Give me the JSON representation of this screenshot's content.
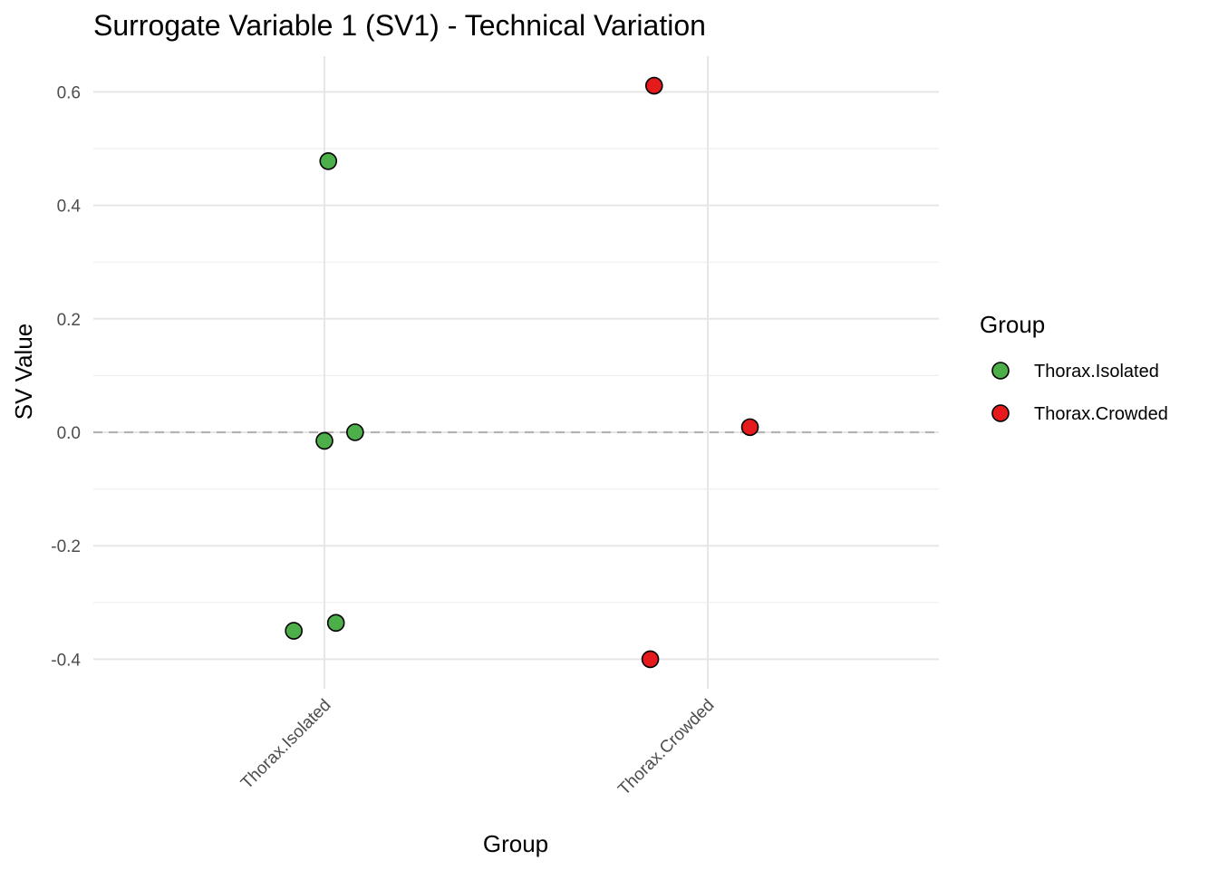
{
  "chart_data": {
    "type": "scatter",
    "title": "Surrogate Variable 1 (SV1) - Technical Variation",
    "xlabel": "Group",
    "ylabel": "SV Value",
    "categories": [
      "Thorax.Isolated",
      "Thorax.Crowded"
    ],
    "ylim": [
      -0.46,
      0.66
    ],
    "y_ticks": [
      -0.4,
      -0.2,
      0.0,
      0.2,
      0.4,
      0.6
    ],
    "y_tick_labels": [
      "-0.4",
      "-0.2",
      "0.0",
      "0.2",
      "0.4",
      "0.6"
    ],
    "reference_line": 0.0,
    "grid": true,
    "legend": {
      "title": "Group",
      "position": "right",
      "entries": [
        {
          "label": "Thorax.Isolated",
          "color": "#4DAF4A"
        },
        {
          "label": "Thorax.Crowded",
          "color": "#E41A1C"
        }
      ]
    },
    "series": [
      {
        "name": "Thorax.Isolated",
        "color": "#4DAF4A",
        "points": [
          {
            "x": 0.01,
            "y": 0.478
          },
          {
            "x": 0.08,
            "y": 0.0
          },
          {
            "x": 0.0,
            "y": -0.015
          },
          {
            "x": 0.03,
            "y": -0.336
          },
          {
            "x": -0.08,
            "y": -0.35
          }
        ]
      },
      {
        "name": "Thorax.Crowded",
        "color": "#E41A1C",
        "points": [
          {
            "x": -0.14,
            "y": 0.611
          },
          {
            "x": 0.11,
            "y": 0.009
          },
          {
            "x": -0.15,
            "y": -0.4
          }
        ]
      }
    ]
  }
}
